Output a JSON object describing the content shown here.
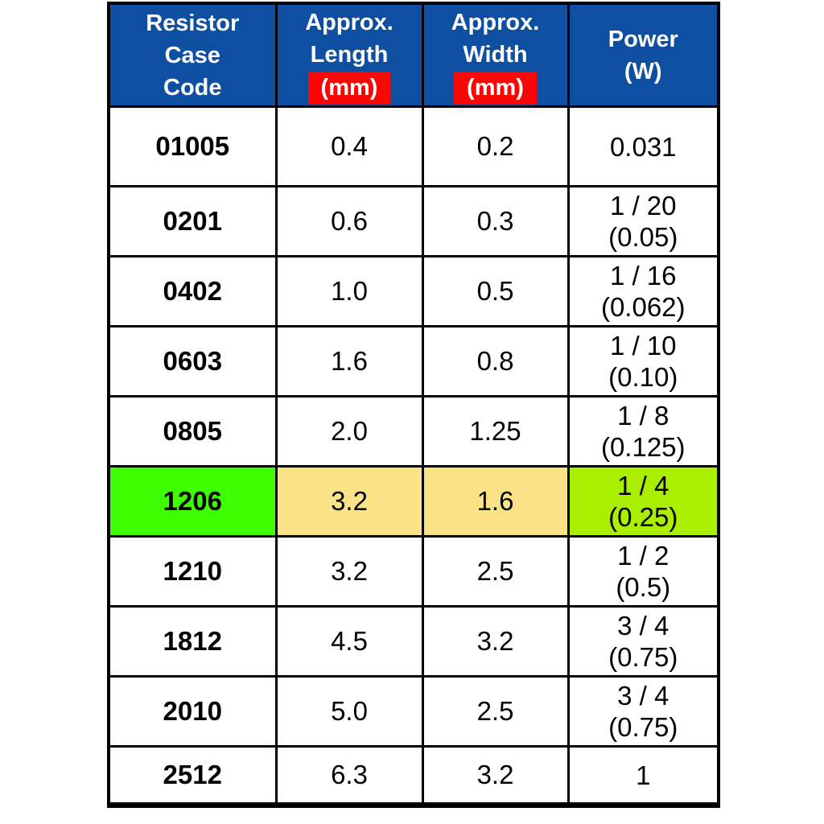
{
  "table": {
    "header": {
      "case_code_lines": [
        "Resistor",
        "Case",
        "Code"
      ],
      "length_lines": [
        "Approx.",
        "Length"
      ],
      "length_unit": "(mm)",
      "width_lines": [
        "Approx.",
        "Width"
      ],
      "width_unit": "(mm)",
      "power_lines": [
        "Power",
        "(W)"
      ]
    },
    "rows": [
      {
        "code": "01005",
        "length": "0.4",
        "width": "0.2",
        "power": [
          "0.031"
        ],
        "highlight": false
      },
      {
        "code": "0201",
        "length": "0.6",
        "width": "0.3",
        "power": [
          "1 / 20",
          "(0.05)"
        ],
        "highlight": false
      },
      {
        "code": "0402",
        "length": "1.0",
        "width": "0.5",
        "power": [
          "1 / 16",
          "(0.062)"
        ],
        "highlight": false
      },
      {
        "code": "0603",
        "length": "1.6",
        "width": "0.8",
        "power": [
          "1 / 10",
          "(0.10)"
        ],
        "highlight": false
      },
      {
        "code": "0805",
        "length": "2.0",
        "width": "1.25",
        "power": [
          "1 / 8",
          "(0.125)"
        ],
        "highlight": false
      },
      {
        "code": "1206",
        "length": "3.2",
        "width": "1.6",
        "power": [
          "1 / 4",
          "(0.25)"
        ],
        "highlight": true
      },
      {
        "code": "1210",
        "length": "3.2",
        "width": "2.5",
        "power": [
          "1 / 2",
          "(0.5)"
        ],
        "highlight": false
      },
      {
        "code": "1812",
        "length": "4.5",
        "width": "3.2",
        "power": [
          "3 / 4",
          "(0.75)"
        ],
        "highlight": false
      },
      {
        "code": "2010",
        "length": "5.0",
        "width": "2.5",
        "power": [
          "3 / 4",
          "(0.75)"
        ],
        "highlight": false
      },
      {
        "code": "2512",
        "length": "6.3",
        "width": "3.2",
        "power": [
          "1"
        ],
        "highlight": false
      }
    ],
    "colors": {
      "header_bg": "#0E4FA1",
      "unit_bg": "#FB0505",
      "highlight_code_bg": "#3EFF00",
      "highlight_dim_bg": "#FAE287",
      "highlight_power_bg": "#AAEE00",
      "border": "#000000"
    }
  },
  "chart_data": {
    "type": "table",
    "title": "Resistor case code size and power rating table",
    "columns": [
      "Resistor Case Code",
      "Approx. Length (mm)",
      "Approx. Width (mm)",
      "Power (W)"
    ],
    "rows": [
      [
        "01005",
        0.4,
        0.2,
        "0.031"
      ],
      [
        "0201",
        0.6,
        0.3,
        "1 / 20 (0.05)"
      ],
      [
        "0402",
        1.0,
        0.5,
        "1 / 16 (0.062)"
      ],
      [
        "0603",
        1.6,
        0.8,
        "1 / 10 (0.10)"
      ],
      [
        "0805",
        2.0,
        1.25,
        "1 / 8 (0.125)"
      ],
      [
        "1206",
        3.2,
        1.6,
        "1 / 4 (0.25)"
      ],
      [
        "1210",
        3.2,
        2.5,
        "1 / 2 (0.5)"
      ],
      [
        "1812",
        4.5,
        3.2,
        "3 / 4 (0.75)"
      ],
      [
        "2010",
        5.0,
        2.5,
        "3 / 4 (0.75)"
      ],
      [
        "2512",
        6.3,
        3.2,
        "1"
      ]
    ],
    "highlighted_row": "1206",
    "layout": {
      "grid": true,
      "header_position": "top"
    }
  }
}
